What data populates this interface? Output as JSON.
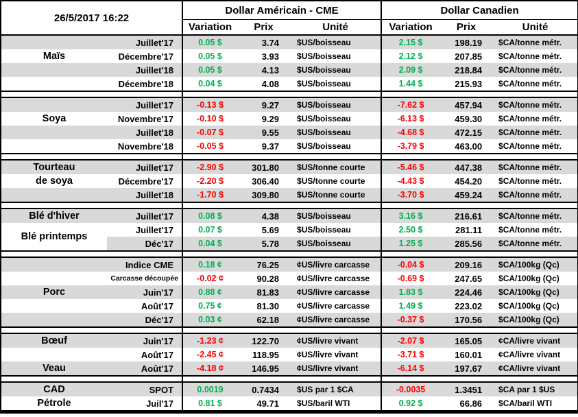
{
  "colors": {
    "positive": "#00B050",
    "negative": "#FF0000",
    "row_shade": "#D9D9D9",
    "background": "#FFFFFF",
    "border": "#000000"
  },
  "table": {
    "datetime": "26/5/2017 16:22",
    "group_us": "Dollar Américain - CME",
    "group_ca": "Dollar Canadien",
    "subheaders": {
      "variation": "Variation",
      "prix": "Prix",
      "unite": "Unité"
    },
    "sections": [
      {
        "id": "mais",
        "rows": [
          {
            "commodity": "",
            "month": "Juillet'17",
            "us": {
              "var": "0.05 $",
              "prix": "3.74",
              "unit": "$US/boisseau"
            },
            "ca": {
              "var": "2.15 $",
              "prix": "198.19",
              "unit": "$CA/tonne métr."
            }
          },
          {
            "commodity": "Maïs",
            "month": "Décembre'17",
            "us": {
              "var": "0.05 $",
              "prix": "3.93",
              "unit": "$US/boisseau"
            },
            "ca": {
              "var": "2.12 $",
              "prix": "207.85",
              "unit": "$CA/tonne métr."
            }
          },
          {
            "commodity": "",
            "month": "Juillet'18",
            "us": {
              "var": "0.05 $",
              "prix": "4.13",
              "unit": "$US/boisseau"
            },
            "ca": {
              "var": "2.09 $",
              "prix": "218.84",
              "unit": "$CA/tonne métr."
            }
          },
          {
            "commodity": "",
            "month": "Décembre'18",
            "us": {
              "var": "0.04 $",
              "prix": "4.08",
              "unit": "$US/boisseau"
            },
            "ca": {
              "var": "1.44 $",
              "prix": "215.93",
              "unit": "$CA/tonne métr."
            }
          }
        ]
      },
      {
        "id": "soya",
        "rows": [
          {
            "commodity": "",
            "month": "Juillet'17",
            "us": {
              "var": "-0.13 $",
              "prix": "9.27",
              "unit": "$US/boisseau"
            },
            "ca": {
              "var": "-7.62 $",
              "prix": "457.94",
              "unit": "$CA/tonne métr."
            }
          },
          {
            "commodity": "Soya",
            "month": "Novembre'17",
            "us": {
              "var": "-0.10 $",
              "prix": "9.29",
              "unit": "$US/boisseau"
            },
            "ca": {
              "var": "-6.13 $",
              "prix": "459.30",
              "unit": "$CA/tonne métr."
            }
          },
          {
            "commodity": "",
            "month": "Juillet'18",
            "us": {
              "var": "-0.07 $",
              "prix": "9.55",
              "unit": "$US/boisseau"
            },
            "ca": {
              "var": "-4.68 $",
              "prix": "472.15",
              "unit": "$CA/tonne métr."
            }
          },
          {
            "commodity": "",
            "month": "Novembre'18",
            "us": {
              "var": "-0.05 $",
              "prix": "9.37",
              "unit": "$US/boisseau"
            },
            "ca": {
              "var": "-3.79 $",
              "prix": "463.00",
              "unit": "$CA/tonne métr."
            }
          }
        ]
      },
      {
        "id": "tourteau-de-soya",
        "rows": [
          {
            "commodity": "Tourteau",
            "month": "Juillet'17",
            "us": {
              "var": "-2.90 $",
              "prix": "301.80",
              "unit": "$US/tonne courte"
            },
            "ca": {
              "var": "-5.46 $",
              "prix": "447.38",
              "unit": "$CA/tonne métr."
            }
          },
          {
            "commodity": "de soya",
            "month": "Décembre'17",
            "us": {
              "var": "-2.20 $",
              "prix": "306.40",
              "unit": "$US/tonne courte"
            },
            "ca": {
              "var": "-4.43 $",
              "prix": "454.20",
              "unit": "$CA/tonne métr."
            }
          },
          {
            "commodity": "",
            "month": "Juillet'18",
            "us": {
              "var": "-1.70 $",
              "prix": "309.80",
              "unit": "$US/tonne courte"
            },
            "ca": {
              "var": "-3.70 $",
              "prix": "459.24",
              "unit": "$CA/tonne métr."
            }
          }
        ]
      },
      {
        "id": "ble",
        "rows": [
          {
            "commodity": "Blé d'hiver",
            "month": "Juillet'17",
            "us": {
              "var": "0.08 $",
              "prix": "4.38",
              "unit": "$US/boisseau"
            },
            "ca": {
              "var": "3.16 $",
              "prix": "216.61",
              "unit": "$CA/tonne métr."
            }
          },
          {
            "commodity": "Blé printemps",
            "commodity_rowspan": 2,
            "month": "Juillet'17",
            "us": {
              "var": "0.07 $",
              "prix": "5.69",
              "unit": "$US/boisseau"
            },
            "ca": {
              "var": "2.50 $",
              "prix": "281.11",
              "unit": "$CA/tonne métr."
            }
          },
          {
            "commodity_skip": true,
            "month": "Déc'17",
            "us": {
              "var": "0.04 $",
              "prix": "5.78",
              "unit": "$US/boisseau"
            },
            "ca": {
              "var": "1.25 $",
              "prix": "285.56",
              "unit": "$CA/tonne métr."
            }
          }
        ]
      },
      {
        "id": "porc",
        "rows": [
          {
            "commodity": "",
            "month": "Indice CME",
            "us": {
              "var": "0.18 ¢",
              "prix": "76.25",
              "unit": "¢US/livre carcasse"
            },
            "ca": {
              "var": "-0.04 $",
              "prix": "209.16",
              "unit": "$CA/100kg (Qc)"
            }
          },
          {
            "commodity": "",
            "month": "Carcasse découpée",
            "month_small": true,
            "us": {
              "var": "-0.02 ¢",
              "prix": "90.28",
              "unit": "¢US/livre carcasse"
            },
            "ca": {
              "var": "-0.69 $",
              "prix": "247.65",
              "unit": "$CA/100kg (Qc)"
            }
          },
          {
            "commodity": "Porc",
            "month": "Juin'17",
            "us": {
              "var": "0.88 ¢",
              "prix": "81.83",
              "unit": "¢US/livre carcasse"
            },
            "ca": {
              "var": "1.83 $",
              "prix": "224.46",
              "unit": "$CA/100kg (Qc)"
            }
          },
          {
            "commodity": "",
            "month": "Août'17",
            "us": {
              "var": "0.75 ¢",
              "prix": "81.30",
              "unit": "¢US/livre carcasse"
            },
            "ca": {
              "var": "1.49 $",
              "prix": "223.02",
              "unit": "$CA/100kg (Qc)"
            }
          },
          {
            "commodity": "",
            "month": "Déc'17",
            "us": {
              "var": "0.03 ¢",
              "prix": "62.18",
              "unit": "¢US/livre carcasse"
            },
            "ca": {
              "var": "-0.37 $",
              "prix": "170.56",
              "unit": "$CA/100kg (Qc)"
            }
          }
        ]
      },
      {
        "id": "boeuf-veau",
        "rows": [
          {
            "commodity": "Bœuf",
            "month": "Juin'17",
            "us": {
              "var": "-1.23 ¢",
              "prix": "122.70",
              "unit": "¢US/livre vivant"
            },
            "ca": {
              "var": "-2.07 $",
              "prix": "165.05",
              "unit": "¢CA/livre vivant"
            }
          },
          {
            "commodity": "",
            "month": "Août'17",
            "us": {
              "var": "-2.45 ¢",
              "prix": "118.95",
              "unit": "¢US/livre vivant"
            },
            "ca": {
              "var": "-3.71 $",
              "prix": "160.01",
              "unit": "¢CA/livre vivant"
            }
          },
          {
            "commodity": "Veau",
            "month": "Août'17",
            "us": {
              "var": "-4.18 ¢",
              "prix": "146.95",
              "unit": "¢US/livre vivant"
            },
            "ca": {
              "var": "-6.14 $",
              "prix": "197.67",
              "unit": "¢CA/livre vivant"
            }
          }
        ]
      },
      {
        "id": "cad-petrole",
        "rows": [
          {
            "commodity": "CAD",
            "month": "SPOT",
            "us": {
              "var": "0.0019",
              "prix": "0.7434",
              "unit": "$US par 1 $CA"
            },
            "ca": {
              "var": "-0.0035",
              "prix": "1.3451",
              "unit": "$CA par 1 $US"
            }
          },
          {
            "commodity": "Pétrole",
            "month": "Juil'17",
            "us": {
              "var": "0.81 $",
              "prix": "49.71",
              "unit": "$US/baril WTI"
            },
            "ca": {
              "var": "0.92 $",
              "prix": "66.86",
              "unit": "$CA/baril WTI"
            }
          }
        ]
      }
    ]
  }
}
